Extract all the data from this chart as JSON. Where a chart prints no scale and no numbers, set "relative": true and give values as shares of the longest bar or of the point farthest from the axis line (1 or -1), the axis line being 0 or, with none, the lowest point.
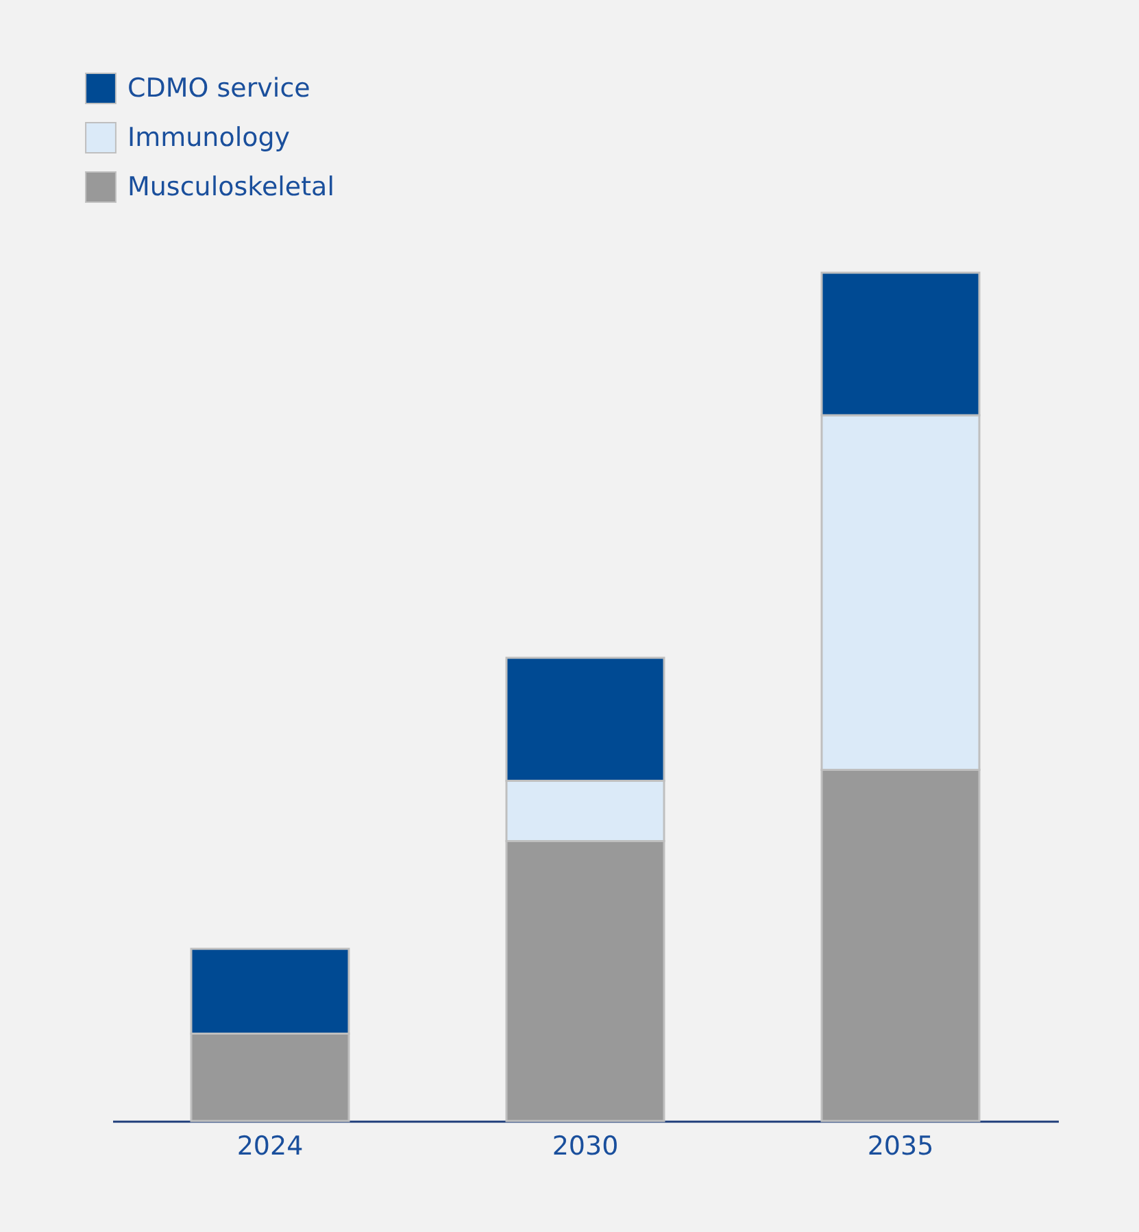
{
  "chart_data": {
    "type": "bar",
    "stacked": true,
    "relative": true,
    "legend": "top left",
    "grid": false,
    "categories": [
      "2024",
      "2030",
      "2035"
    ],
    "series": [
      {
        "name": "Musculoskeletal",
        "color": "#999999",
        "values": [
          0.103,
          0.33,
          0.414
        ]
      },
      {
        "name": "Immunology",
        "color": "#dbeaf8",
        "values": [
          0,
          0.071,
          0.418
        ]
      },
      {
        "name": "CDMO service",
        "color": "#004a93",
        "values": [
          0.1,
          0.145,
          0.168
        ]
      }
    ]
  }
}
